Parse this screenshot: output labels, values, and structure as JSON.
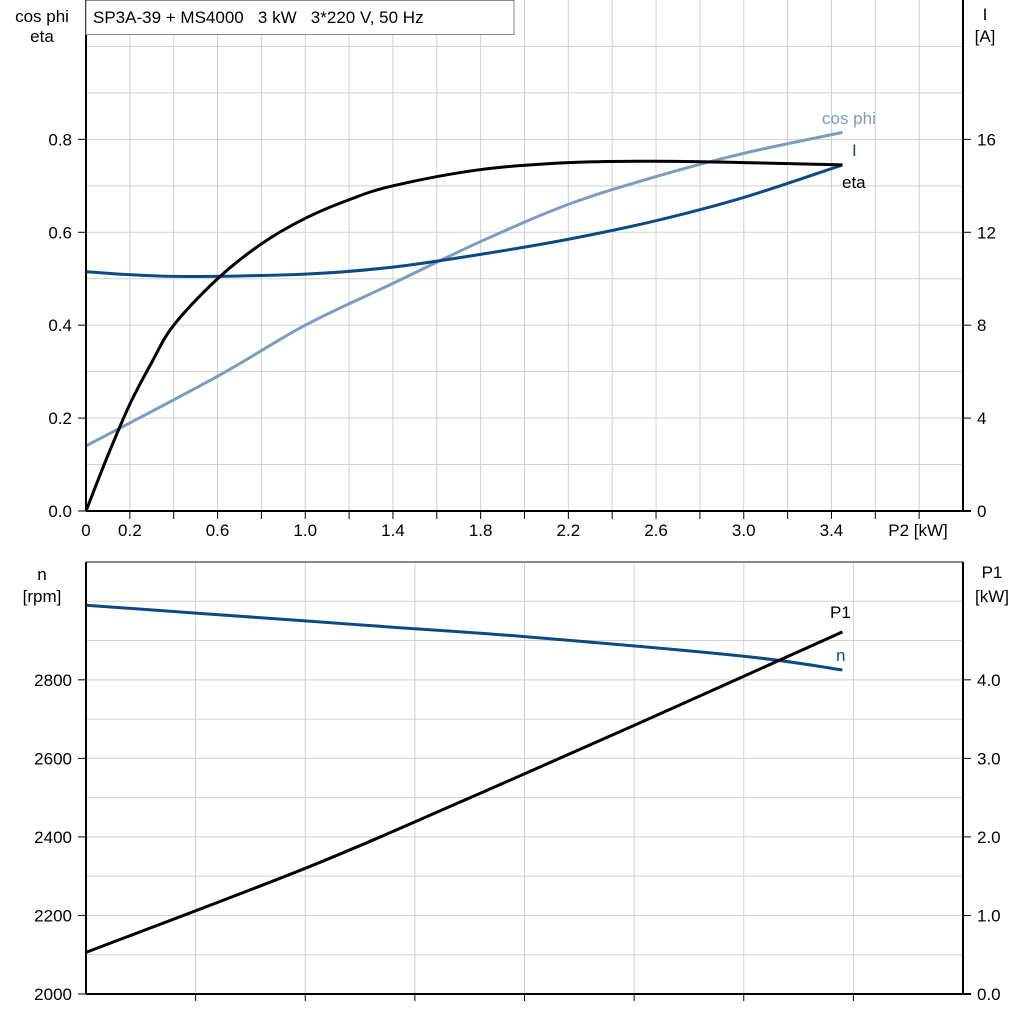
{
  "chart_data": [
    {
      "type": "line",
      "title": "SP3A-39 + MS4000   3 kW   3*220 V, 50 Hz",
      "xlabel": "P2 [kW]",
      "ylabel_left": [
        "cos phi",
        "eta"
      ],
      "ylabel_right": [
        "I",
        "[A]"
      ],
      "xlim": [
        0,
        4.0
      ],
      "ylim_left": [
        0,
        1.1
      ],
      "ylim_right": [
        0,
        22
      ],
      "x_tick_labels": [
        "0",
        "0.2",
        "0.6",
        "1.0",
        "1.4",
        "1.8",
        "2.2",
        "2.6",
        "3.0",
        "3.4"
      ],
      "x_ticks": [
        0,
        0.2,
        0.6,
        1.0,
        1.4,
        1.8,
        2.2,
        2.6,
        3.0,
        3.4
      ],
      "y_left_ticks": [
        0,
        0.2,
        0.4,
        0.6,
        0.8
      ],
      "y_left_tick_labels": [
        "0.0",
        "0.2",
        "0.4",
        "0.6",
        "0.8"
      ],
      "y_right_ticks": [
        0,
        4,
        8,
        12,
        16
      ],
      "y_right_tick_labels": [
        "0",
        "4",
        "8",
        "12",
        "16"
      ],
      "grid": true,
      "series": [
        {
          "name": "eta",
          "axis": "left",
          "color": "#000000",
          "x": [
            0,
            0.1,
            0.2,
            0.3,
            0.4,
            0.6,
            0.8,
            1.0,
            1.2,
            1.4,
            1.8,
            2.2,
            2.6,
            3.0,
            3.45
          ],
          "y": [
            0,
            0.12,
            0.23,
            0.32,
            0.4,
            0.5,
            0.575,
            0.63,
            0.67,
            0.7,
            0.735,
            0.75,
            0.753,
            0.75,
            0.745
          ]
        },
        {
          "name": "cos phi",
          "axis": "left",
          "color": "#7a9cc0",
          "x": [
            0,
            0.6,
            1.0,
            1.4,
            1.8,
            2.2,
            2.6,
            3.0,
            3.45
          ],
          "y": [
            0.14,
            0.29,
            0.4,
            0.49,
            0.58,
            0.66,
            0.72,
            0.77,
            0.815
          ]
        },
        {
          "name": "I",
          "axis": "right",
          "color": "#0d4a82",
          "x": [
            0,
            0.4,
            1.0,
            1.4,
            1.8,
            2.2,
            2.6,
            3.0,
            3.45
          ],
          "y": [
            10.3,
            10.1,
            10.2,
            10.5,
            11.05,
            11.7,
            12.5,
            13.5,
            14.9
          ]
        }
      ]
    },
    {
      "type": "line",
      "ylabel_left": [
        "n",
        "[rpm]"
      ],
      "ylabel_right": [
        "P1",
        "[kW]"
      ],
      "xlim": [
        0,
        4.0
      ],
      "ylim_left": [
        2000,
        3100
      ],
      "ylim_right": [
        0,
        5.5
      ],
      "y_left_ticks": [
        2000,
        2200,
        2400,
        2600,
        2800
      ],
      "y_left_tick_labels": [
        "2000",
        "2200",
        "2400",
        "2600",
        "2800"
      ],
      "y_right_ticks": [
        0,
        1,
        2,
        3,
        4
      ],
      "y_right_tick_labels": [
        "0.0",
        "1.0",
        "2.0",
        "3.0",
        "4.0"
      ],
      "grid": true,
      "series": [
        {
          "name": "n",
          "axis": "left",
          "color": "#0d4a82",
          "x": [
            0,
            1.0,
            1.4,
            2.0,
            3.0,
            3.45
          ],
          "y": [
            2990,
            2950,
            2934,
            2910,
            2860,
            2825
          ]
        },
        {
          "name": "P1",
          "axis": "right",
          "color": "#000000",
          "x": [
            0,
            1.0,
            1.72,
            2.5,
            3.45
          ],
          "y": [
            0.53,
            1.6,
            2.46,
            3.42,
            4.61
          ]
        }
      ]
    }
  ]
}
